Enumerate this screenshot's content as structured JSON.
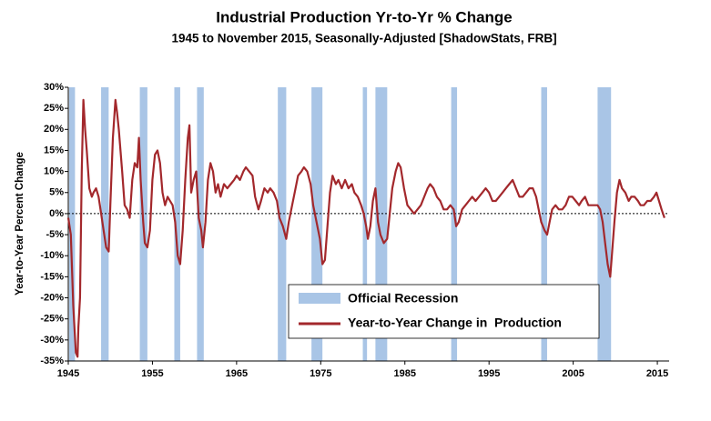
{
  "chart_data": {
    "type": "line",
    "title": "Industrial Production Yr-to-Yr % Change",
    "subtitle": "1945 to November 2015, Seasonally-Adjusted [ShadowStats, FRB]",
    "y_label": "Year-to-Year Percent Change",
    "xlim": [
      1945,
      2016.4
    ],
    "xticks": [
      1945,
      1955,
      1965,
      1975,
      1985,
      1995,
      2005,
      2015
    ],
    "ylim": [
      -35,
      30
    ],
    "yticks": [
      {
        "value": 30,
        "label": "30%"
      },
      {
        "value": 25,
        "label": "25%"
      },
      {
        "value": 20,
        "label": "20%"
      },
      {
        "value": 15,
        "label": "15%"
      },
      {
        "value": 10,
        "label": "10%"
      },
      {
        "value": 5,
        "label": "5%"
      },
      {
        "value": 0,
        "label": "0%"
      },
      {
        "value": -5,
        "label": "-5%"
      },
      {
        "value": -10,
        "label": "-10%"
      },
      {
        "value": -15,
        "label": "-15%"
      },
      {
        "value": -20,
        "label": "-20%"
      },
      {
        "value": -25,
        "label": "-25%"
      },
      {
        "value": -30,
        "label": "-30%"
      },
      {
        "value": -35,
        "label": "-35%"
      }
    ],
    "recessions": {
      "name": "Official Recession",
      "color": "#a9c5e6",
      "ranges": [
        [
          1945.1,
          1945.8
        ],
        [
          1948.9,
          1949.8
        ],
        [
          1953.5,
          1954.4
        ],
        [
          1957.6,
          1958.3
        ],
        [
          1960.3,
          1961.1
        ],
        [
          1969.9,
          1970.9
        ],
        [
          1973.9,
          1975.2
        ],
        [
          1980.0,
          1980.5
        ],
        [
          1981.5,
          1982.9
        ],
        [
          1990.5,
          1991.2
        ],
        [
          2001.2,
          2001.9
        ],
        [
          2007.9,
          2009.5
        ]
      ]
    },
    "x": [
      1945.0,
      1945.3,
      1945.6,
      1945.9,
      1946.1,
      1946.2,
      1946.4,
      1946.6,
      1946.8,
      1947.0,
      1947.2,
      1947.5,
      1947.8,
      1948.0,
      1948.3,
      1948.6,
      1948.9,
      1949.2,
      1949.5,
      1949.8,
      1950.0,
      1950.3,
      1950.6,
      1950.8,
      1951.0,
      1951.4,
      1951.7,
      1952.0,
      1952.3,
      1952.6,
      1952.9,
      1953.2,
      1953.4,
      1953.6,
      1953.9,
      1954.1,
      1954.4,
      1954.7,
      1955.0,
      1955.3,
      1955.6,
      1955.9,
      1956.2,
      1956.5,
      1956.8,
      1957.1,
      1957.4,
      1957.7,
      1958.0,
      1958.3,
      1958.6,
      1958.9,
      1959.2,
      1959.4,
      1959.6,
      1959.9,
      1960.2,
      1960.5,
      1960.8,
      1961.0,
      1961.3,
      1961.6,
      1961.9,
      1962.2,
      1962.5,
      1962.8,
      1963.1,
      1963.5,
      1963.9,
      1964.3,
      1964.7,
      1965.0,
      1965.4,
      1965.8,
      1966.1,
      1966.5,
      1966.9,
      1967.2,
      1967.6,
      1967.9,
      1968.3,
      1968.7,
      1969.0,
      1969.4,
      1969.8,
      1970.1,
      1970.5,
      1970.9,
      1971.2,
      1971.6,
      1971.9,
      1972.3,
      1972.7,
      1973.0,
      1973.4,
      1973.8,
      1974.1,
      1974.5,
      1974.9,
      1975.2,
      1975.5,
      1975.8,
      1976.1,
      1976.4,
      1976.8,
      1977.1,
      1977.5,
      1977.9,
      1978.3,
      1978.7,
      1979.0,
      1979.4,
      1979.8,
      1980.1,
      1980.4,
      1980.6,
      1980.9,
      1981.2,
      1981.5,
      1981.8,
      1982.1,
      1982.5,
      1982.9,
      1983.2,
      1983.5,
      1983.9,
      1984.2,
      1984.5,
      1984.9,
      1985.3,
      1985.7,
      1986.1,
      1986.5,
      1986.9,
      1987.3,
      1987.7,
      1988.0,
      1988.4,
      1988.8,
      1989.2,
      1989.6,
      1990.0,
      1990.4,
      1990.8,
      1991.1,
      1991.4,
      1991.8,
      1992.2,
      1992.6,
      1993.0,
      1993.4,
      1993.8,
      1994.2,
      1994.6,
      1995.0,
      1995.4,
      1995.8,
      1996.2,
      1996.6,
      1997.0,
      1997.4,
      1997.8,
      1998.2,
      1998.6,
      1999.0,
      1999.4,
      1999.8,
      2000.2,
      2000.6,
      2000.9,
      2001.2,
      2001.6,
      2001.9,
      2002.2,
      2002.5,
      2002.9,
      2003.3,
      2003.7,
      2004.1,
      2004.5,
      2004.9,
      2005.3,
      2005.7,
      2006.0,
      2006.4,
      2006.8,
      2007.2,
      2007.6,
      2007.9,
      2008.2,
      2008.5,
      2008.8,
      2009.1,
      2009.4,
      2009.6,
      2009.9,
      2010.2,
      2010.5,
      2010.8,
      2011.2,
      2011.6,
      2011.9,
      2012.3,
      2012.7,
      2013.0,
      2013.4,
      2013.8,
      2014.2,
      2014.6,
      2014.9,
      2015.2,
      2015.5,
      2015.85
    ],
    "series": [
      {
        "name": "Year-to-Year Change in  Production",
        "color": "#a3282c",
        "values": [
          -1,
          -5,
          -22,
          -33,
          -34,
          -27,
          -20,
          10,
          27,
          20,
          15,
          6,
          4,
          5,
          6,
          4,
          0,
          -4,
          -8,
          -9,
          2,
          18,
          27,
          24,
          20,
          10,
          2,
          1,
          -1,
          8,
          12,
          11,
          18,
          8,
          -2,
          -7,
          -8,
          -4,
          8,
          14,
          15,
          12,
          5,
          2,
          4,
          3,
          2,
          -2,
          -10,
          -12,
          -4,
          8,
          18,
          21,
          5,
          8,
          10,
          -1,
          -4,
          -8,
          -2,
          8,
          12,
          10,
          5,
          7,
          4,
          7,
          6,
          7,
          8,
          9,
          8,
          10,
          11,
          10,
          9,
          4,
          1,
          3,
          6,
          5,
          6,
          5,
          3,
          -1,
          -3,
          -6,
          -2,
          2,
          5,
          9,
          10,
          11,
          10,
          7,
          2,
          -2,
          -6,
          -12,
          -11,
          -3,
          5,
          9,
          7,
          8,
          6,
          8,
          6,
          7,
          5,
          4,
          2,
          0,
          -3,
          -6,
          -3,
          3,
          6,
          -2,
          -5,
          -7,
          -6,
          0,
          6,
          10,
          12,
          11,
          6,
          2,
          1,
          0,
          1,
          2,
          4,
          6,
          7,
          6,
          4,
          3,
          1,
          1,
          2,
          1,
          -3,
          -2,
          1,
          2,
          3,
          4,
          3,
          4,
          5,
          6,
          5,
          3,
          3,
          4,
          5,
          6,
          7,
          8,
          6,
          4,
          4,
          5,
          6,
          6,
          4,
          1,
          -2,
          -4,
          -5,
          -2,
          1,
          2,
          1,
          1,
          2,
          4,
          4,
          3,
          2,
          3,
          4,
          2,
          2,
          2,
          2,
          1,
          -2,
          -7,
          -12,
          -15,
          -10,
          -2,
          5,
          8,
          6,
          5,
          3,
          4,
          4,
          3,
          2,
          2,
          3,
          3,
          4,
          5,
          3,
          1,
          -1
        ]
      }
    ]
  }
}
